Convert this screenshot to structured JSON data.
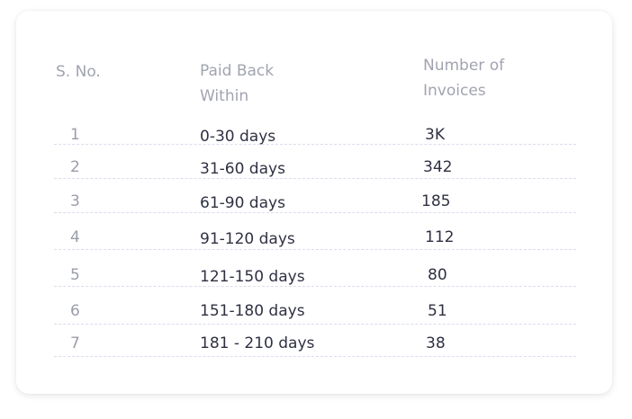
{
  "table": {
    "headers": {
      "sno": "S. No.",
      "paid_back_line1": "Paid Back",
      "paid_back_line2": "Within",
      "invoices_line1": "Number of",
      "invoices_line2": "Invoices"
    },
    "rows": [
      {
        "sno": "1",
        "range": "0-30 days",
        "invoices": "3K"
      },
      {
        "sno": "2",
        "range": "31-60 days",
        "invoices": "342"
      },
      {
        "sno": "3",
        "range": "61-90 days",
        "invoices": "185"
      },
      {
        "sno": "4",
        "range": "91-120 days",
        "invoices": "112"
      },
      {
        "sno": "5",
        "range": "121-150 days",
        "invoices": "80"
      },
      {
        "sno": "6",
        "range": "151-180 days",
        "invoices": "51"
      },
      {
        "sno": "7",
        "range": "181 - 210 days",
        "invoices": "38"
      }
    ]
  }
}
